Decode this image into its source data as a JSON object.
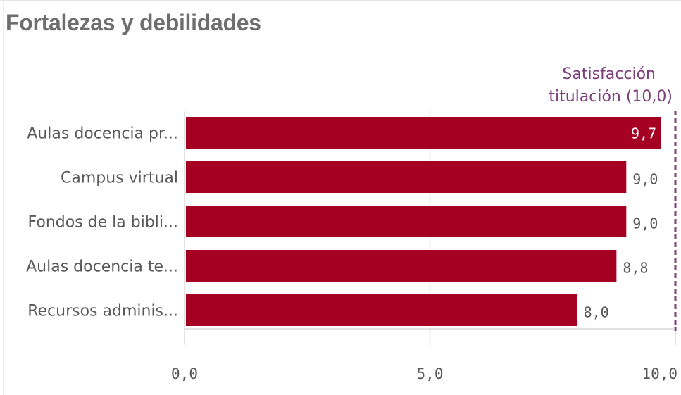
{
  "title": "Fortalezas y debilidades",
  "chart_data": {
    "type": "bar",
    "orientation": "horizontal",
    "title": "Fortalezas y debilidades",
    "categories": [
      "Aulas docencia pr...",
      "Campus virtual",
      "Fondos de la bibli...",
      "Aulas docencia te...",
      "Recursos adminis..."
    ],
    "values": [
      9.7,
      9.0,
      9.0,
      8.8,
      8.0
    ],
    "value_labels": [
      "9,7",
      "9,0",
      "9,0",
      "8,8",
      "8,0"
    ],
    "xlim": [
      0,
      10
    ],
    "ticks": [
      0,
      5,
      10
    ],
    "tick_labels": [
      "0,0",
      "5,0",
      "10,0"
    ],
    "grid": true,
    "reference_line": {
      "value": 10.0,
      "label_line1": "Satisfacción",
      "label_line2": "titulación (10,0)",
      "color": "#7b3f7a",
      "style": "dashed"
    },
    "bar_color": "#a50021",
    "axis_color": "#d9d9d9"
  }
}
